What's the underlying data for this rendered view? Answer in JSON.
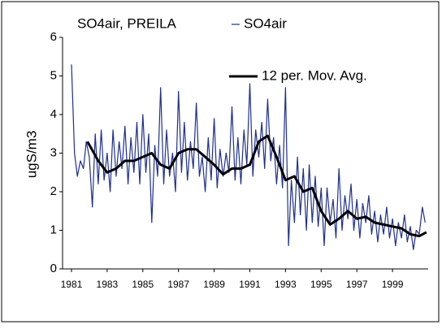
{
  "chart_data": {
    "type": "line",
    "title": "SO4air,  PREILA",
    "y_label": "ugS/m3",
    "xlim": [
      1980.5,
      2001
    ],
    "ylim": [
      0,
      6
    ],
    "yticks": [
      0,
      1,
      2,
      3,
      4,
      5,
      6
    ],
    "xticks": [
      1981,
      1983,
      1985,
      1987,
      1989,
      1991,
      1993,
      1995,
      1997,
      1999
    ],
    "series": [
      {
        "name": "SO4air",
        "color": "#1f2f8f",
        "width": 1.2,
        "x": [
          1981,
          1981.17,
          1981.33,
          1981.5,
          1981.67,
          1981.83,
          1982,
          1982.17,
          1982.33,
          1982.5,
          1982.67,
          1982.83,
          1983,
          1983.17,
          1983.33,
          1983.5,
          1983.67,
          1983.83,
          1984,
          1984.17,
          1984.33,
          1984.5,
          1984.67,
          1984.83,
          1985,
          1985.17,
          1985.33,
          1985.5,
          1985.67,
          1985.83,
          1986,
          1986.17,
          1986.33,
          1986.5,
          1986.67,
          1986.83,
          1987,
          1987.17,
          1987.33,
          1987.5,
          1987.67,
          1987.83,
          1988,
          1988.17,
          1988.33,
          1988.5,
          1988.67,
          1988.83,
          1989,
          1989.17,
          1989.33,
          1989.5,
          1989.67,
          1989.83,
          1990,
          1990.17,
          1990.33,
          1990.5,
          1990.67,
          1990.83,
          1991,
          1991.17,
          1991.33,
          1991.5,
          1991.67,
          1991.83,
          1992,
          1992.17,
          1992.33,
          1992.5,
          1992.67,
          1992.83,
          1993,
          1993.17,
          1993.33,
          1993.5,
          1993.67,
          1993.83,
          1994,
          1994.17,
          1994.33,
          1994.5,
          1994.67,
          1994.83,
          1995,
          1995.17,
          1995.33,
          1995.5,
          1995.67,
          1995.83,
          1996,
          1996.17,
          1996.33,
          1996.5,
          1996.67,
          1996.83,
          1997,
          1997.17,
          1997.33,
          1997.5,
          1997.67,
          1997.83,
          1998,
          1998.17,
          1998.33,
          1998.5,
          1998.67,
          1998.83,
          1999,
          1999.17,
          1999.33,
          1999.5,
          1999.67,
          1999.83,
          2000,
          2000.17,
          2000.33,
          2000.5,
          2000.67,
          2000.83
        ],
        "values": [
          5.3,
          3.0,
          2.4,
          2.8,
          2.6,
          3.3,
          2.9,
          1.6,
          3.5,
          2.2,
          3.6,
          2.3,
          3.0,
          2.0,
          3.6,
          2.4,
          3.3,
          2.6,
          3.7,
          2.2,
          3.4,
          2.5,
          3.8,
          2.2,
          4.0,
          2.5,
          3.5,
          1.2,
          3.2,
          2.4,
          4.7,
          2.2,
          3.6,
          2.4,
          3.0,
          2.0,
          4.6,
          2.5,
          3.8,
          2.3,
          3.3,
          2.6,
          4.3,
          2.4,
          2.9,
          2.0,
          3.4,
          2.3,
          3.9,
          2.1,
          3.1,
          2.4,
          3.0,
          2.5,
          4.2,
          2.3,
          3.4,
          2.2,
          3.6,
          2.7,
          4.8,
          2.4,
          3.6,
          2.9,
          3.8,
          2.6,
          4.4,
          2.8,
          3.4,
          2.2,
          3.2,
          2.1,
          4.7,
          0.6,
          2.3,
          1.2,
          2.9,
          1.4,
          2.6,
          1.0,
          2.7,
          1.2,
          2.4,
          1.1,
          2.1,
          0.6,
          2.1,
          1.2,
          1.8,
          0.8,
          2.6,
          1.0,
          1.9,
          1.3,
          2.2,
          1.0,
          1.8,
          0.8,
          1.7,
          1.2,
          1.9,
          0.9,
          1.5,
          0.7,
          1.4,
          0.9,
          1.6,
          0.8,
          1.3,
          0.6,
          1.2,
          0.8,
          1.4,
          0.7,
          1.1,
          0.5,
          1.0,
          0.9,
          1.6,
          1.2
        ]
      },
      {
        "name": "12 per. Mov. Avg.",
        "color": "#000000",
        "width": 3,
        "x": [
          1981.9,
          1982.5,
          1983,
          1983.5,
          1984,
          1984.5,
          1985,
          1985.5,
          1986,
          1986.5,
          1987,
          1987.5,
          1988,
          1988.5,
          1989,
          1989.5,
          1990,
          1990.5,
          1991,
          1991.5,
          1992,
          1992.5,
          1993,
          1993.5,
          1994,
          1994.5,
          1995,
          1995.5,
          1996,
          1996.5,
          1997,
          1997.5,
          1998,
          1998.5,
          1999,
          1999.5,
          2000,
          2000.5,
          2000.9
        ],
        "values": [
          3.3,
          2.8,
          2.5,
          2.6,
          2.8,
          2.8,
          2.9,
          3.0,
          2.7,
          2.6,
          3.0,
          3.1,
          3.1,
          2.9,
          2.7,
          2.45,
          2.6,
          2.6,
          2.7,
          3.3,
          3.45,
          2.9,
          2.3,
          2.4,
          2.0,
          2.1,
          1.5,
          1.15,
          1.3,
          1.5,
          1.3,
          1.35,
          1.2,
          1.15,
          1.1,
          1.05,
          0.9,
          0.85,
          0.95
        ]
      }
    ]
  }
}
